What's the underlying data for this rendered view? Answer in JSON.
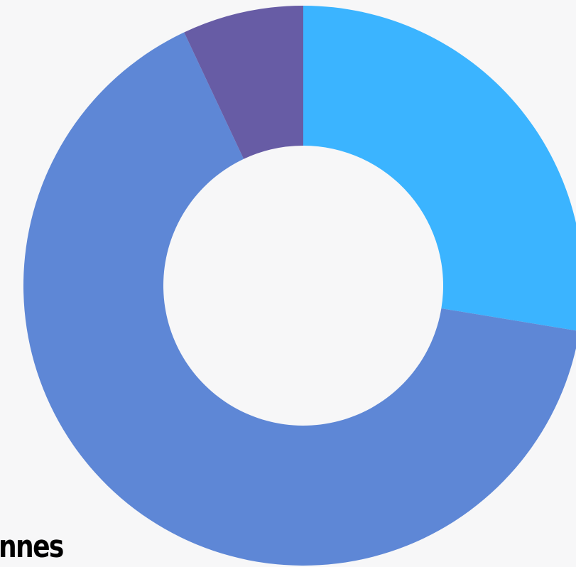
{
  "colors": {
    "background": "#f7f7f8",
    "label": "#000000"
  },
  "chart_data": {
    "type": "pie",
    "variant": "donut",
    "slices": [
      {
        "value": 27.6,
        "color": "#3bb4ff"
      },
      {
        "value": 65.4,
        "color": "#5e87d6"
      },
      {
        "value": 7.0,
        "color": "#675ca5"
      }
    ],
    "start": "12 o'clock",
    "direction": "clockwise",
    "legend": "none"
  },
  "cut_label": "nnes"
}
